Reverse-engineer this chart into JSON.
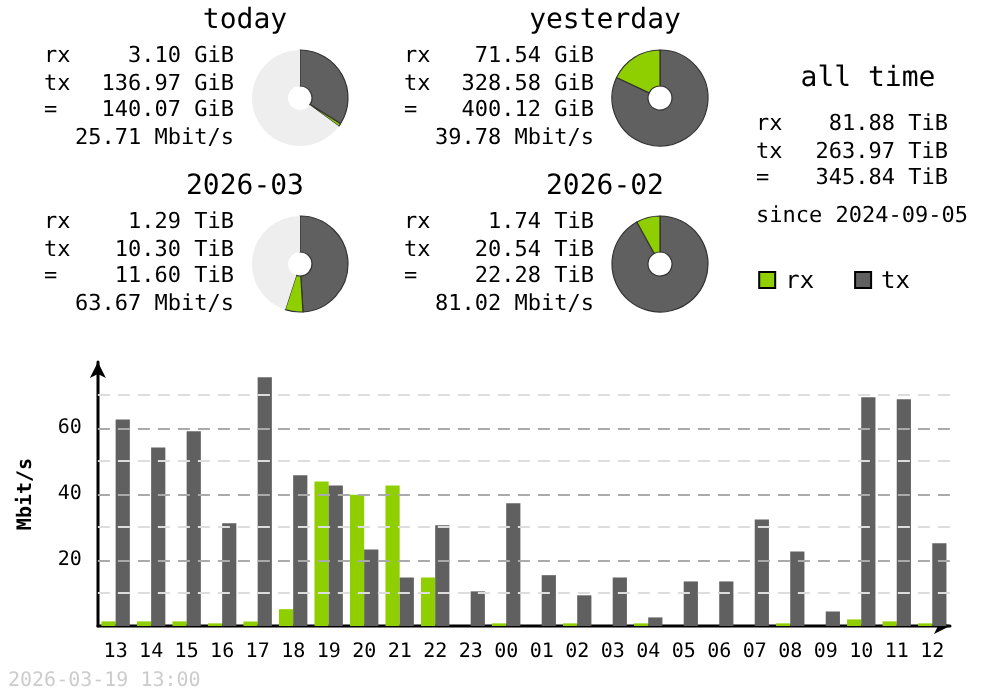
{
  "chart_data": [
    {
      "type": "donut",
      "title": "today",
      "categories": [
        null,
        null,
        null
      ],
      "values": [
        34,
        1,
        65
      ],
      "colors": [
        "#606060",
        "#8fcf00",
        "#eeeeee"
      ],
      "annotations": [
        "rx 3.10 GiB",
        "tx 136.97 GiB",
        "= 140.07 GiB",
        "25.71 Mbit/s"
      ]
    },
    {
      "type": "donut",
      "title": "yesterday",
      "categories": [
        null,
        null
      ],
      "values": [
        82,
        18
      ],
      "colors": [
        "#606060",
        "#8fcf00"
      ],
      "annotations": [
        "rx 71.54 GiB",
        "tx 328.58 GiB",
        "= 400.12 GiB",
        "39.78 Mbit/s"
      ]
    },
    {
      "type": "donut",
      "title": "2026-03",
      "categories": [
        null,
        null,
        null
      ],
      "values": [
        49,
        6,
        45
      ],
      "colors": [
        "#606060",
        "#8fcf00",
        "#eeeeee"
      ],
      "annotations": [
        "rx 1.29 TiB",
        "tx 10.30 TiB",
        "= 11.60 TiB",
        "63.67 Mbit/s"
      ]
    },
    {
      "type": "donut",
      "title": "2026-02",
      "categories": [
        null,
        null
      ],
      "values": [
        92,
        8
      ],
      "colors": [
        "#606060",
        "#8fcf00"
      ],
      "annotations": [
        "rx 1.74 TiB",
        "tx 20.54 TiB",
        "= 22.28 TiB",
        "81.02 Mbit/s"
      ]
    },
    {
      "type": "other",
      "title": "all time",
      "annotations": [
        "rx 81.88 TiB",
        "tx 263.97 TiB",
        "= 345.84 TiB",
        "since 2024-09-05"
      ]
    },
    {
      "type": "bar",
      "ylabel": "Mbit/s",
      "categories": [
        "13",
        "14",
        "15",
        "16",
        "17",
        "18",
        "19",
        "20",
        "21",
        "22",
        "23",
        "00",
        "01",
        "02",
        "03",
        "04",
        "05",
        "06",
        "07",
        "08",
        "09",
        "10",
        "11",
        "12"
      ],
      "series": [
        {
          "name": "rx",
          "color": "#8fcf00",
          "values": [
            1.4,
            1.4,
            1.4,
            0.8,
            1.4,
            5.1,
            43.8,
            39.8,
            42.6,
            14.7,
            0,
            0.8,
            0,
            0.8,
            0,
            0.8,
            0,
            0,
            0,
            0.8,
            0,
            2.0,
            1.4,
            0.8
          ]
        },
        {
          "name": "tx",
          "color": "#606060",
          "values": [
            62.6,
            54.1,
            59,
            31.1,
            75.4,
            45.7,
            42.6,
            23.2,
            14.7,
            30.5,
            10.5,
            37.2,
            15.4,
            9.3,
            14.7,
            2.6,
            13.5,
            13.5,
            32.3,
            22.6,
            4.4,
            69.3,
            68.7,
            25.1
          ]
        }
      ],
      "ylim": [
        0,
        80
      ],
      "yticks": [
        {
          "value": 10,
          "label": null
        },
        20,
        {
          "value": 30,
          "label": null
        },
        40,
        {
          "value": 50,
          "label": null
        },
        60,
        {
          "value": 70,
          "label": null
        }
      ],
      "grid": "y",
      "legend": "top right",
      "annotations": [
        "2026-03-19 13:00"
      ]
    }
  ]
}
